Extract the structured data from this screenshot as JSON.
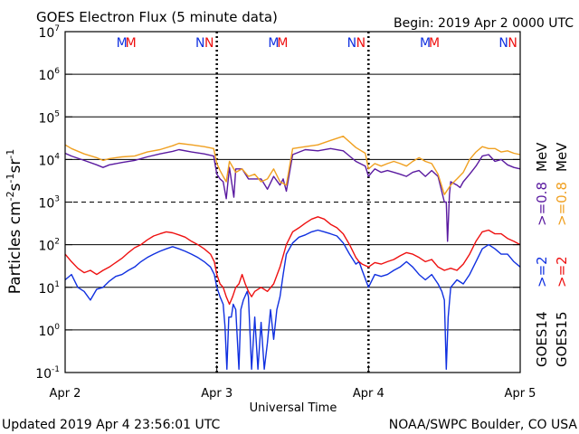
{
  "chart_data": {
    "type": "line",
    "title": "GOES Electron Flux (5 minute data)",
    "begin_label": "Begin: 2019 Apr 2 0000 UTC",
    "xlabel": "Universal Time",
    "ylabel": "Particles cm-2s-1sr-1",
    "yscale": "log",
    "ylim": [
      0.1,
      10000000
    ],
    "ytick_exponents": [
      -1,
      0,
      1,
      2,
      3,
      4,
      5,
      6,
      7
    ],
    "xlim": [
      0,
      72
    ],
    "x_unit": "hours since 2019 Apr 2 00:00 UTC",
    "x_ticks": [
      {
        "label": "Apr 2",
        "x": 0
      },
      {
        "label": "Apr 3",
        "x": 24
      },
      {
        "label": "Apr 4",
        "x": 48
      },
      {
        "label": "Apr 5",
        "x": 72
      }
    ],
    "grid": "horizontal lines at each decade; dashed at 10^3",
    "markers": {
      "day1": {
        "M": 9.4,
        "N": 21.9
      },
      "day2": {
        "M": 33.4,
        "N": 45.9
      },
      "day3": {
        "M": 57.4,
        "N": 69.9
      }
    },
    "series": [
      {
        "name": "GOES14 >=0.8 MeV",
        "color": "#5a1aa0",
        "points": [
          [
            0,
            14000
          ],
          [
            1,
            12000
          ],
          [
            3,
            9500
          ],
          [
            5,
            7500
          ],
          [
            6,
            6500
          ],
          [
            7,
            7500
          ],
          [
            9,
            8500
          ],
          [
            11,
            9500
          ],
          [
            13,
            11500
          ],
          [
            15,
            13500
          ],
          [
            17,
            15500
          ],
          [
            18,
            17000
          ],
          [
            20,
            15000
          ],
          [
            22,
            13500
          ],
          [
            23.5,
            12000
          ],
          [
            24,
            4500
          ],
          [
            24.5,
            3500
          ],
          [
            25,
            3000
          ],
          [
            25.5,
            1200
          ],
          [
            26,
            6500
          ],
          [
            26.7,
            1300
          ],
          [
            27,
            6000
          ],
          [
            28,
            6000
          ],
          [
            29,
            3500
          ],
          [
            30,
            3500
          ],
          [
            31,
            3500
          ],
          [
            32,
            2000
          ],
          [
            33,
            4000
          ],
          [
            34,
            2500
          ],
          [
            34.5,
            3500
          ],
          [
            35,
            1800
          ],
          [
            36,
            13000
          ],
          [
            38,
            17000
          ],
          [
            40,
            16000
          ],
          [
            42,
            18000
          ],
          [
            44,
            16000
          ],
          [
            46,
            9000
          ],
          [
            47.5,
            7000
          ],
          [
            48,
            4000
          ],
          [
            49,
            6000
          ],
          [
            50,
            5000
          ],
          [
            51,
            5500
          ],
          [
            52,
            5000
          ],
          [
            53,
            4500
          ],
          [
            54,
            4000
          ],
          [
            55,
            5000
          ],
          [
            56,
            5500
          ],
          [
            57,
            4000
          ],
          [
            58,
            5500
          ],
          [
            59,
            4000
          ],
          [
            60,
            1000
          ],
          [
            60.3,
            1000
          ],
          [
            60.5,
            120
          ],
          [
            60.8,
            1500
          ],
          [
            61,
            3000
          ],
          [
            62,
            2500
          ],
          [
            62.5,
            2200
          ],
          [
            63,
            3000
          ],
          [
            64,
            4500
          ],
          [
            65,
            7000
          ],
          [
            66,
            12000
          ],
          [
            67,
            13000
          ],
          [
            68,
            9000
          ],
          [
            69,
            10000
          ],
          [
            70,
            7500
          ],
          [
            71,
            6500
          ],
          [
            72,
            6000
          ]
        ]
      },
      {
        "name": "GOES15 >=0.8 MeV",
        "color": "#f0a020",
        "points": [
          [
            0,
            22000
          ],
          [
            1,
            18000
          ],
          [
            3,
            13500
          ],
          [
            5,
            11000
          ],
          [
            6,
            9500
          ],
          [
            7,
            10500
          ],
          [
            9,
            11500
          ],
          [
            11,
            12000
          ],
          [
            13,
            15000
          ],
          [
            15,
            17000
          ],
          [
            17,
            21000
          ],
          [
            18,
            24000
          ],
          [
            20,
            22000
          ],
          [
            22,
            20000
          ],
          [
            23.5,
            18000
          ],
          [
            24,
            8000
          ],
          [
            24.5,
            5500
          ],
          [
            25,
            4000
          ],
          [
            25.5,
            3000
          ],
          [
            26,
            9000
          ],
          [
            27,
            5000
          ],
          [
            28,
            6000
          ],
          [
            29,
            4000
          ],
          [
            30,
            4500
          ],
          [
            31,
            3000
          ],
          [
            32,
            3500
          ],
          [
            33,
            6000
          ],
          [
            34,
            3000
          ],
          [
            35,
            2500
          ],
          [
            36,
            18000
          ],
          [
            38,
            20000
          ],
          [
            40,
            22000
          ],
          [
            42,
            28000
          ],
          [
            44,
            35000
          ],
          [
            46,
            19000
          ],
          [
            47.5,
            14000
          ],
          [
            48,
            6000
          ],
          [
            49,
            8000
          ],
          [
            50,
            7000
          ],
          [
            51,
            8000
          ],
          [
            52,
            9000
          ],
          [
            53,
            8000
          ],
          [
            54,
            7000
          ],
          [
            55,
            9000
          ],
          [
            56,
            11000
          ],
          [
            57,
            9000
          ],
          [
            58,
            8000
          ],
          [
            59,
            4500
          ],
          [
            60,
            1500
          ],
          [
            61,
            2500
          ],
          [
            62,
            3500
          ],
          [
            63,
            5000
          ],
          [
            64,
            10000
          ],
          [
            65,
            15000
          ],
          [
            66,
            20000
          ],
          [
            67,
            18000
          ],
          [
            68,
            18000
          ],
          [
            69,
            15000
          ],
          [
            70,
            16000
          ],
          [
            71,
            14000
          ],
          [
            72,
            13000
          ]
        ]
      },
      {
        "name": "GOES14 >=2 MeV",
        "color": "#1030e0",
        "points": [
          [
            0,
            15
          ],
          [
            1,
            20
          ],
          [
            2,
            10
          ],
          [
            3,
            8
          ],
          [
            4,
            5
          ],
          [
            5,
            9
          ],
          [
            6,
            10
          ],
          [
            7,
            14
          ],
          [
            8,
            18
          ],
          [
            9,
            20
          ],
          [
            10,
            25
          ],
          [
            11,
            30
          ],
          [
            12,
            40
          ],
          [
            13,
            50
          ],
          [
            14,
            60
          ],
          [
            15,
            70
          ],
          [
            16,
            80
          ],
          [
            17,
            90
          ],
          [
            18,
            80
          ],
          [
            19,
            70
          ],
          [
            20,
            60
          ],
          [
            21,
            50
          ],
          [
            22,
            40
          ],
          [
            23,
            30
          ],
          [
            23.6,
            20
          ],
          [
            24,
            10
          ],
          [
            24.5,
            6
          ],
          [
            25,
            4
          ],
          [
            25.3,
            1.2
          ],
          [
            25.6,
            0.12
          ],
          [
            25.9,
            2
          ],
          [
            26.3,
            2
          ],
          [
            26.6,
            4
          ],
          [
            27,
            3
          ],
          [
            27.5,
            0.12
          ],
          [
            27.8,
            3
          ],
          [
            28.2,
            5
          ],
          [
            28.8,
            8
          ],
          [
            29,
            6
          ],
          [
            29.5,
            0.12
          ],
          [
            30,
            2
          ],
          [
            30.5,
            0.12
          ],
          [
            31,
            1.5
          ],
          [
            31.5,
            0.12
          ],
          [
            32,
            0.5
          ],
          [
            32.5,
            3
          ],
          [
            33,
            0.6
          ],
          [
            33.5,
            3
          ],
          [
            34,
            6
          ],
          [
            34.5,
            20
          ],
          [
            35,
            60
          ],
          [
            36,
            110
          ],
          [
            37,
            150
          ],
          [
            38,
            170
          ],
          [
            39,
            200
          ],
          [
            40,
            220
          ],
          [
            41,
            200
          ],
          [
            42,
            180
          ],
          [
            43,
            160
          ],
          [
            44,
            110
          ],
          [
            45,
            60
          ],
          [
            46,
            35
          ],
          [
            46.5,
            40
          ],
          [
            47,
            25
          ],
          [
            48,
            10
          ],
          [
            49,
            20
          ],
          [
            50,
            18
          ],
          [
            51,
            20
          ],
          [
            52,
            25
          ],
          [
            53,
            30
          ],
          [
            54,
            40
          ],
          [
            55,
            30
          ],
          [
            56,
            20
          ],
          [
            57,
            15
          ],
          [
            58,
            20
          ],
          [
            59,
            12
          ],
          [
            59.6,
            8
          ],
          [
            60,
            5
          ],
          [
            60.3,
            0.12
          ],
          [
            60.6,
            2
          ],
          [
            61,
            10
          ],
          [
            62,
            15
          ],
          [
            63,
            12
          ],
          [
            64,
            20
          ],
          [
            65,
            40
          ],
          [
            66,
            80
          ],
          [
            67,
            100
          ],
          [
            68,
            80
          ],
          [
            69,
            60
          ],
          [
            70,
            60
          ],
          [
            71,
            40
          ],
          [
            72,
            30
          ]
        ]
      },
      {
        "name": "GOES15 >=2 MeV",
        "color": "#ee1010",
        "points": [
          [
            0,
            60
          ],
          [
            1,
            40
          ],
          [
            2,
            28
          ],
          [
            3,
            22
          ],
          [
            4,
            25
          ],
          [
            5,
            20
          ],
          [
            6,
            25
          ],
          [
            7,
            30
          ],
          [
            8,
            38
          ],
          [
            9,
            48
          ],
          [
            10,
            65
          ],
          [
            11,
            85
          ],
          [
            12,
            100
          ],
          [
            13,
            130
          ],
          [
            14,
            160
          ],
          [
            15,
            180
          ],
          [
            16,
            200
          ],
          [
            17,
            190
          ],
          [
            18,
            170
          ],
          [
            19,
            150
          ],
          [
            20,
            120
          ],
          [
            21,
            100
          ],
          [
            22,
            80
          ],
          [
            23,
            60
          ],
          [
            23.6,
            40
          ],
          [
            24,
            20
          ],
          [
            24.5,
            12
          ],
          [
            25,
            10
          ],
          [
            25.5,
            6
          ],
          [
            26,
            4
          ],
          [
            26.5,
            6
          ],
          [
            27,
            10
          ],
          [
            27.5,
            12
          ],
          [
            28,
            20
          ],
          [
            28.5,
            12
          ],
          [
            29,
            8
          ],
          [
            29.5,
            6
          ],
          [
            30,
            8
          ],
          [
            31,
            10
          ],
          [
            32,
            8
          ],
          [
            33,
            12
          ],
          [
            34,
            30
          ],
          [
            35,
            100
          ],
          [
            36,
            200
          ],
          [
            37,
            250
          ],
          [
            38,
            320
          ],
          [
            39,
            400
          ],
          [
            40,
            450
          ],
          [
            41,
            400
          ],
          [
            42,
            300
          ],
          [
            43,
            250
          ],
          [
            44,
            180
          ],
          [
            45,
            100
          ],
          [
            46,
            50
          ],
          [
            46.5,
            40
          ],
          [
            47,
            35
          ],
          [
            48,
            30
          ],
          [
            49,
            38
          ],
          [
            50,
            35
          ],
          [
            51,
            40
          ],
          [
            52,
            45
          ],
          [
            53,
            55
          ],
          [
            54,
            65
          ],
          [
            55,
            60
          ],
          [
            56,
            50
          ],
          [
            57,
            40
          ],
          [
            58,
            45
          ],
          [
            59,
            30
          ],
          [
            60,
            25
          ],
          [
            61,
            28
          ],
          [
            62,
            25
          ],
          [
            63,
            35
          ],
          [
            64,
            60
          ],
          [
            65,
            120
          ],
          [
            66,
            200
          ],
          [
            67,
            220
          ],
          [
            68,
            180
          ],
          [
            69,
            180
          ],
          [
            70,
            140
          ],
          [
            71,
            120
          ],
          [
            72,
            100
          ]
        ]
      }
    ]
  },
  "right_labels": {
    "goes14": "GOES14",
    "goes15": "GOES15",
    "gt2": ">=2",
    "gt08": ">=0.8",
    "mev": "MeV"
  },
  "footer": {
    "updated": "Updated 2019 Apr  4 23:56:01 UTC",
    "credit": "NOAA/SWPC Boulder, CO USA"
  },
  "colors": {
    "goes14": "#5a1aa0",
    "goes15": "#f0a020",
    "marker_M_first": "#1030e0",
    "marker_M_second": "#ee1010"
  }
}
